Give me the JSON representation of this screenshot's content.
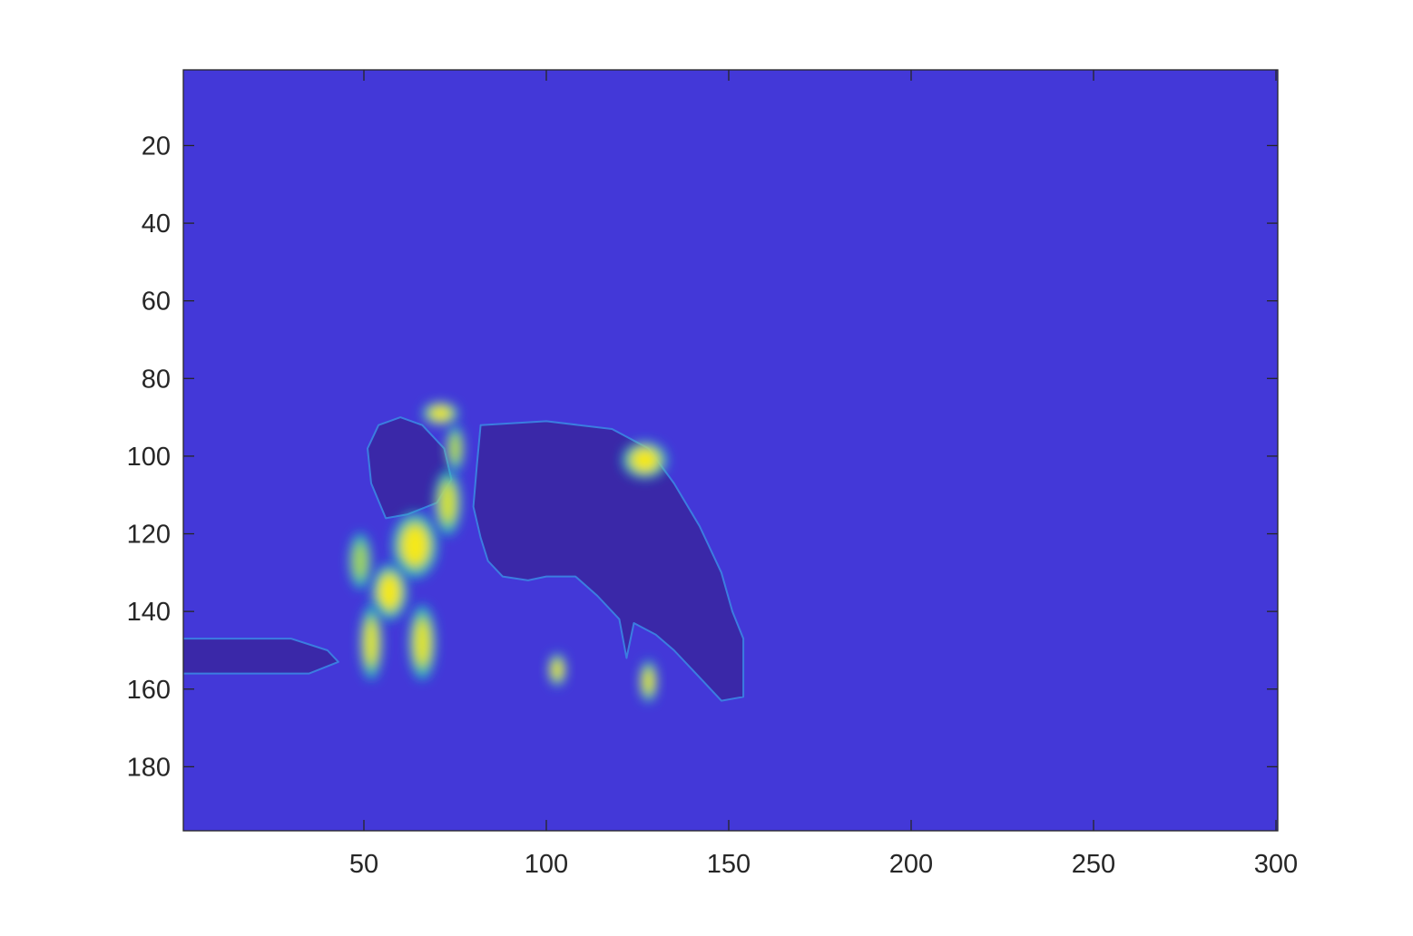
{
  "chart_data": {
    "type": "heatmap",
    "title": "",
    "xlabel": "",
    "ylabel": "",
    "xlim": [
      0.5,
      300.5
    ],
    "ylim": [
      0.5,
      196.5
    ],
    "y_reversed": true,
    "x_ticks": [
      50,
      100,
      150,
      200,
      250,
      300
    ],
    "y_ticks": [
      20,
      40,
      60,
      80,
      100,
      120,
      140,
      160,
      180
    ],
    "x_tick_labels": [
      "50",
      "100",
      "150",
      "200",
      "250",
      "300"
    ],
    "y_tick_labels": [
      "20",
      "40",
      "60",
      "80",
      "100",
      "120",
      "140",
      "160",
      "180"
    ],
    "colormap": "parula",
    "colors": {
      "background": "#4338d8",
      "dark_region": "#3a28a8",
      "edge_cyan": "#1fb8c8",
      "mid_green": "#8ccc4a",
      "peak_yellow": "#f5e81e",
      "axis": "#262626"
    },
    "regions": [
      {
        "name": "cow-body",
        "level": "dark",
        "outline": [
          [
            82,
            92
          ],
          [
            100,
            91
          ],
          [
            118,
            93
          ],
          [
            128,
            98
          ],
          [
            135,
            107
          ],
          [
            142,
            118
          ],
          [
            148,
            130
          ],
          [
            151,
            140
          ],
          [
            154,
            147
          ],
          [
            154,
            162
          ],
          [
            148,
            163
          ],
          [
            143,
            158
          ],
          [
            135,
            150
          ],
          [
            130,
            146
          ],
          [
            124,
            143
          ],
          [
            122,
            152
          ],
          [
            120,
            142
          ],
          [
            114,
            136
          ],
          [
            108,
            131
          ],
          [
            100,
            131
          ],
          [
            95,
            132
          ],
          [
            88,
            131
          ],
          [
            84,
            127
          ],
          [
            82,
            121
          ],
          [
            80,
            113
          ],
          [
            81,
            102
          ]
        ]
      },
      {
        "name": "cow-head",
        "level": "dark",
        "outline": [
          [
            54,
            92
          ],
          [
            60,
            90
          ],
          [
            66,
            92
          ],
          [
            72,
            98
          ],
          [
            74,
            106
          ],
          [
            70,
            112
          ],
          [
            62,
            115
          ],
          [
            56,
            116
          ],
          [
            52,
            107
          ],
          [
            51,
            98
          ]
        ]
      },
      {
        "name": "ground-shadow",
        "level": "dark",
        "outline": [
          [
            0,
            147
          ],
          [
            30,
            147
          ],
          [
            40,
            150
          ],
          [
            43,
            153
          ],
          [
            35,
            156
          ],
          [
            0,
            156
          ]
        ]
      }
    ],
    "hotspots": [
      {
        "name": "person-torso",
        "x": 64,
        "y": 123,
        "rx": 5,
        "ry": 7,
        "peak": 1.0
      },
      {
        "name": "person-hip",
        "x": 57,
        "y": 135,
        "rx": 4,
        "ry": 6,
        "peak": 1.0
      },
      {
        "name": "person-arm-upper",
        "x": 73,
        "y": 112,
        "rx": 3,
        "ry": 7,
        "peak": 0.75
      },
      {
        "name": "person-arm-top",
        "x": 75,
        "y": 98,
        "rx": 2,
        "ry": 5,
        "peak": 0.6
      },
      {
        "name": "person-hand",
        "x": 71,
        "y": 89,
        "rx": 4,
        "ry": 2.5,
        "peak": 0.95
      },
      {
        "name": "person-left-leg",
        "x": 52,
        "y": 148,
        "rx": 2.5,
        "ry": 8,
        "peak": 0.85
      },
      {
        "name": "person-right-leg",
        "x": 66,
        "y": 148,
        "rx": 3,
        "ry": 8,
        "peak": 0.85
      },
      {
        "name": "person-back-arm",
        "x": 49,
        "y": 127,
        "rx": 2.5,
        "ry": 6,
        "peak": 0.5
      },
      {
        "name": "cow-patch",
        "x": 127,
        "y": 101,
        "rx": 5,
        "ry": 4,
        "peak": 1.0
      },
      {
        "name": "cow-leg-spot-1",
        "x": 103,
        "y": 155,
        "rx": 2,
        "ry": 3.5,
        "peak": 0.9
      },
      {
        "name": "cow-leg-spot-2",
        "x": 128,
        "y": 158,
        "rx": 2,
        "ry": 4.5,
        "peak": 0.85
      }
    ]
  }
}
